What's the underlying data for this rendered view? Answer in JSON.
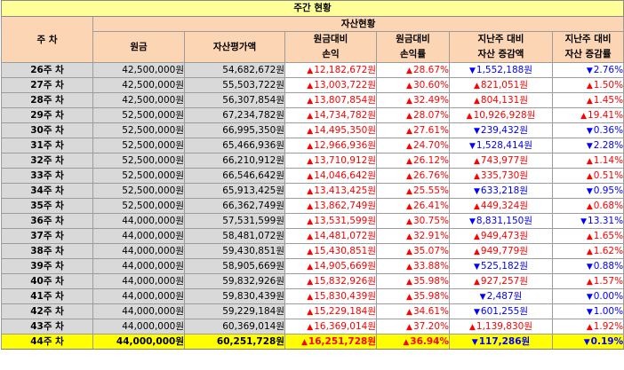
{
  "title": "주간 현황",
  "header": {
    "week": "주 차",
    "group": "자산현황",
    "principal": "원금",
    "asset_value": "자산평가액",
    "pl_amount": [
      "원금대비",
      "손익"
    ],
    "pl_rate": [
      "원금대비",
      "손익률"
    ],
    "wow_amount": [
      "지난주 대비",
      "자산 증감액"
    ],
    "wow_rate": [
      "지난주 대비",
      "자산 증감률"
    ]
  },
  "colors": {
    "up": "#ff0000",
    "down": "#0000ff",
    "header_bg": "#fcd5b4",
    "title_bg": "#ffff99",
    "current_row_bg": "#ffff00",
    "cell_bg": "#d9d9d9"
  },
  "icons": {
    "up": "triangle-up-icon",
    "down": "triangle-down-icon"
  },
  "rows": [
    {
      "week": "26주 차",
      "principal": "42,500,000원",
      "asset": "54,682,672원",
      "pl": "12,182,672원",
      "pl_dir": "up",
      "pl_rate": "28.67%",
      "pr_dir": "up",
      "wow": "1,552,188원",
      "wow_dir": "down",
      "wow_rate": "2.76%",
      "wr_dir": "down"
    },
    {
      "week": "27주 차",
      "principal": "42,500,000원",
      "asset": "55,503,722원",
      "pl": "13,003,722원",
      "pl_dir": "up",
      "pl_rate": "30.60%",
      "pr_dir": "up",
      "wow": "821,051원",
      "wow_dir": "up",
      "wow_rate": "1.50%",
      "wr_dir": "up"
    },
    {
      "week": "28주 차",
      "principal": "42,500,000원",
      "asset": "56,307,854원",
      "pl": "13,807,854원",
      "pl_dir": "up",
      "pl_rate": "32.49%",
      "pr_dir": "up",
      "wow": "804,131원",
      "wow_dir": "up",
      "wow_rate": "1.45%",
      "wr_dir": "up"
    },
    {
      "week": "29주 차",
      "principal": "52,500,000원",
      "asset": "67,234,782원",
      "pl": "14,734,782원",
      "pl_dir": "up",
      "pl_rate": "28.07%",
      "pr_dir": "up",
      "wow": "10,926,928원",
      "wow_dir": "up",
      "wow_rate": "19.41%",
      "wr_dir": "up"
    },
    {
      "week": "30주 차",
      "principal": "52,500,000원",
      "asset": "66,995,350원",
      "pl": "14,495,350원",
      "pl_dir": "up",
      "pl_rate": "27.61%",
      "pr_dir": "up",
      "wow": "239,432원",
      "wow_dir": "down",
      "wow_rate": "0.36%",
      "wr_dir": "down"
    },
    {
      "week": "31주 차",
      "principal": "52,500,000원",
      "asset": "65,466,936원",
      "pl": "12,966,936원",
      "pl_dir": "up",
      "pl_rate": "24.70%",
      "pr_dir": "up",
      "wow": "1,528,414원",
      "wow_dir": "down",
      "wow_rate": "2.28%",
      "wr_dir": "down"
    },
    {
      "week": "32주 차",
      "principal": "52,500,000원",
      "asset": "66,210,912원",
      "pl": "13,710,912원",
      "pl_dir": "up",
      "pl_rate": "26.12%",
      "pr_dir": "up",
      "wow": "743,977원",
      "wow_dir": "up",
      "wow_rate": "1.14%",
      "wr_dir": "up"
    },
    {
      "week": "33주 차",
      "principal": "52,500,000원",
      "asset": "66,546,642원",
      "pl": "14,046,642원",
      "pl_dir": "up",
      "pl_rate": "26.76%",
      "pr_dir": "up",
      "wow": "335,730원",
      "wow_dir": "up",
      "wow_rate": "0.51%",
      "wr_dir": "up"
    },
    {
      "week": "34주 차",
      "principal": "52,500,000원",
      "asset": "65,913,425원",
      "pl": "13,413,425원",
      "pl_dir": "up",
      "pl_rate": "25.55%",
      "pr_dir": "up",
      "wow": "633,218원",
      "wow_dir": "down",
      "wow_rate": "0.95%",
      "wr_dir": "down"
    },
    {
      "week": "35주 차",
      "principal": "52,500,000원",
      "asset": "66,362,749원",
      "pl": "13,862,749원",
      "pl_dir": "up",
      "pl_rate": "26.41%",
      "pr_dir": "up",
      "wow": "449,324원",
      "wow_dir": "up",
      "wow_rate": "0.68%",
      "wr_dir": "up"
    },
    {
      "week": "36주 차",
      "principal": "44,000,000원",
      "asset": "57,531,599원",
      "pl": "13,531,599원",
      "pl_dir": "up",
      "pl_rate": "30.75%",
      "pr_dir": "up",
      "wow": "8,831,150원",
      "wow_dir": "down",
      "wow_rate": "13.31%",
      "wr_dir": "down"
    },
    {
      "week": "37주 차",
      "principal": "44,000,000원",
      "asset": "58,481,072원",
      "pl": "14,481,072원",
      "pl_dir": "up",
      "pl_rate": "32.91%",
      "pr_dir": "up",
      "wow": "949,473원",
      "wow_dir": "up",
      "wow_rate": "1.65%",
      "wr_dir": "up"
    },
    {
      "week": "38주 차",
      "principal": "44,000,000원",
      "asset": "59,430,851원",
      "pl": "15,430,851원",
      "pl_dir": "up",
      "pl_rate": "35.07%",
      "pr_dir": "up",
      "wow": "949,779원",
      "wow_dir": "up",
      "wow_rate": "1.62%",
      "wr_dir": "up"
    },
    {
      "week": "39주 차",
      "principal": "44,000,000원",
      "asset": "58,905,669원",
      "pl": "14,905,669원",
      "pl_dir": "up",
      "pl_rate": "33.88%",
      "pr_dir": "up",
      "wow": "525,182원",
      "wow_dir": "down",
      "wow_rate": "0.88%",
      "wr_dir": "down"
    },
    {
      "week": "40주 차",
      "principal": "44,000,000원",
      "asset": "59,832,926원",
      "pl": "15,832,926원",
      "pl_dir": "up",
      "pl_rate": "35.98%",
      "pr_dir": "up",
      "wow": "927,257원",
      "wow_dir": "up",
      "wow_rate": "1.57%",
      "wr_dir": "up"
    },
    {
      "week": "41주 차",
      "principal": "44,000,000원",
      "asset": "59,830,439원",
      "pl": "15,830,439원",
      "pl_dir": "up",
      "pl_rate": "35.98%",
      "pr_dir": "up",
      "wow": "2,487원",
      "wow_dir": "down",
      "wow_rate": "0.00%",
      "wr_dir": "down"
    },
    {
      "week": "42주 차",
      "principal": "44,000,000원",
      "asset": "59,229,184원",
      "pl": "15,229,184원",
      "pl_dir": "up",
      "pl_rate": "34.61%",
      "pr_dir": "up",
      "wow": "601,255원",
      "wow_dir": "down",
      "wow_rate": "1.00%",
      "wr_dir": "down"
    },
    {
      "week": "43주 차",
      "principal": "44,000,000원",
      "asset": "60,369,014원",
      "pl": "16,369,014원",
      "pl_dir": "up",
      "pl_rate": "37.20%",
      "pr_dir": "up",
      "wow": "1,139,830원",
      "wow_dir": "up",
      "wow_rate": "1.92%",
      "wr_dir": "up"
    },
    {
      "week": "44주 차",
      "principal": "44,000,000원",
      "asset": "60,251,728원",
      "pl": "16,251,728원",
      "pl_dir": "up",
      "pl_rate": "36.94%",
      "pr_dir": "up",
      "wow": "117,286원",
      "wow_dir": "down",
      "wow_rate": "0.19%",
      "wr_dir": "down",
      "current": true
    }
  ]
}
